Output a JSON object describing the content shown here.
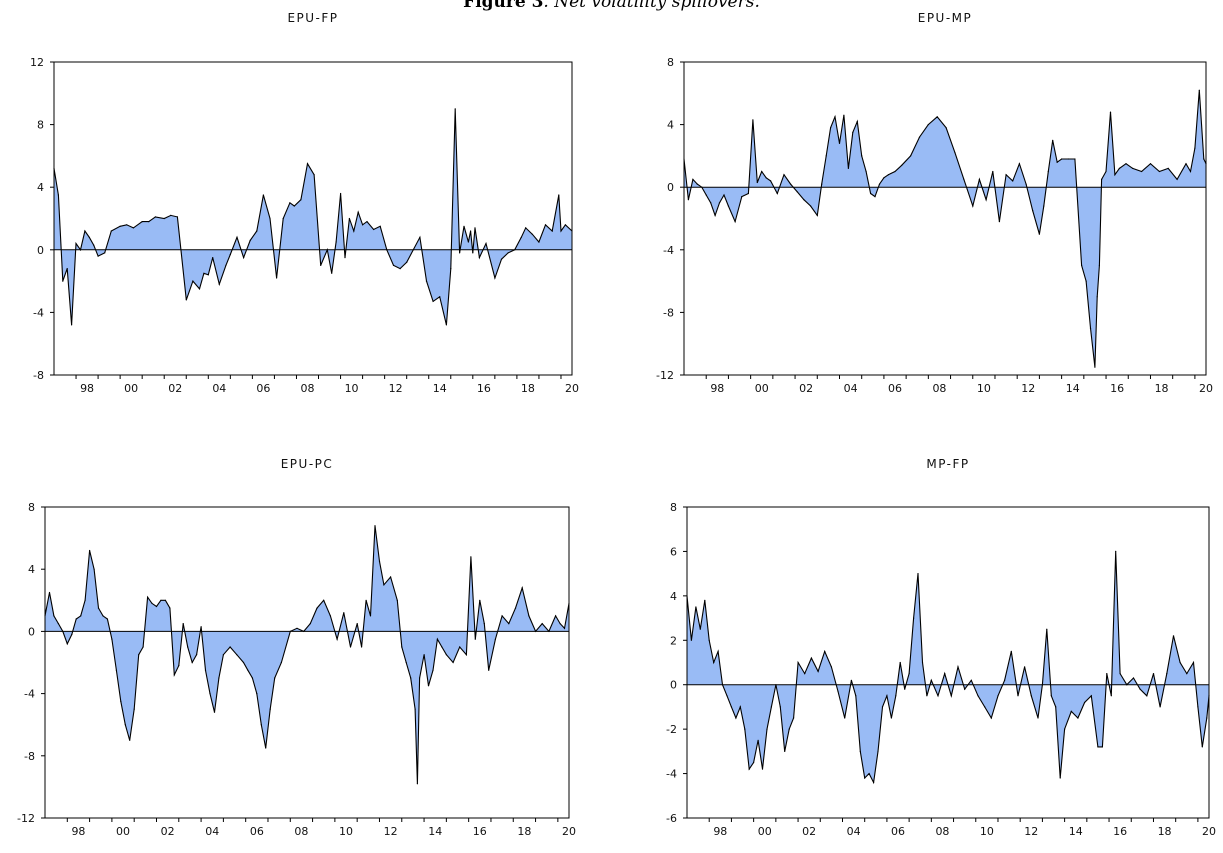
{
  "figure": {
    "label": "Figure 3",
    "caption": ". Net volatility spillovers."
  },
  "colors": {
    "fill": "#99bbf5",
    "line": "#000000",
    "zero": "#000000"
  },
  "chart_data": [
    {
      "type": "area",
      "title": "EPU-FP",
      "ylim": [
        -8,
        12
      ],
      "yticks": [
        -8,
        -4,
        0,
        4,
        8,
        12
      ],
      "xlim": [
        1997,
        2020.5
      ],
      "xticks": [
        "98",
        "00",
        "02",
        "04",
        "06",
        "08",
        "10",
        "12",
        "14",
        "16",
        "18",
        "20"
      ],
      "grid": false,
      "x": [
        1997.0,
        1997.2,
        1997.4,
        1997.6,
        1997.8,
        1998.0,
        1998.2,
        1998.4,
        1998.6,
        1998.8,
        1999.0,
        1999.3,
        1999.6,
        2000.0,
        2000.3,
        2000.6,
        2001.0,
        2001.3,
        2001.6,
        2002.0,
        2002.3,
        2002.6,
        2003.0,
        2003.3,
        2003.6,
        2003.8,
        2004.0,
        2004.2,
        2004.5,
        2004.8,
        2005.0,
        2005.3,
        2005.6,
        2005.9,
        2006.2,
        2006.5,
        2006.8,
        2007.1,
        2007.4,
        2007.7,
        2007.9,
        2008.2,
        2008.5,
        2008.8,
        2009.1,
        2009.4,
        2009.6,
        2009.8,
        2010.0,
        2010.2,
        2010.4,
        2010.6,
        2010.8,
        2011.0,
        2011.2,
        2011.5,
        2011.8,
        2012.1,
        2012.4,
        2012.7,
        2013.0,
        2013.3,
        2013.6,
        2013.9,
        2014.2,
        2014.5,
        2014.8,
        2015.0,
        2015.2,
        2015.4,
        2015.6,
        2015.8,
        2015.9,
        2016.0,
        2016.1,
        2016.3,
        2016.6,
        2017.0,
        2017.3,
        2017.6,
        2017.9,
        2018.2,
        2018.4,
        2018.7,
        2019.0,
        2019.3,
        2019.6,
        2019.9,
        2020.0,
        2020.2,
        2020.5
      ],
      "values": [
        5.2,
        3.5,
        -2.0,
        -1.2,
        -4.8,
        0.4,
        0.0,
        1.2,
        0.8,
        0.3,
        -0.4,
        -0.2,
        1.2,
        1.5,
        1.6,
        1.4,
        1.8,
        1.8,
        2.1,
        2.0,
        2.2,
        2.1,
        -3.2,
        -2.0,
        -2.5,
        -1.5,
        -1.6,
        -0.5,
        -2.2,
        -1.0,
        -0.3,
        0.8,
        -0.5,
        0.6,
        1.2,
        3.5,
        2.0,
        -1.8,
        2.0,
        3.0,
        2.8,
        3.2,
        5.5,
        4.8,
        -1.0,
        0.0,
        -1.5,
        0.5,
        3.6,
        -0.5,
        2.0,
        1.2,
        2.4,
        1.6,
        1.8,
        1.3,
        1.5,
        0.0,
        -1.0,
        -1.2,
        -0.8,
        0.0,
        0.8,
        -2.0,
        -3.3,
        -3.0,
        -4.8,
        -1.2,
        9.0,
        -0.2,
        1.5,
        0.5,
        1.2,
        -0.2,
        1.4,
        -0.5,
        0.4,
        -1.8,
        -0.6,
        -0.2,
        0.0,
        0.8,
        1.4,
        1.0,
        0.5,
        1.6,
        1.2,
        3.5,
        1.2,
        1.6,
        1.2
      ]
    },
    {
      "type": "area",
      "title": "EPU-MP",
      "ylim": [
        -12,
        8
      ],
      "yticks": [
        -12,
        -8,
        -4,
        0,
        4,
        8
      ],
      "xlim": [
        1997,
        2020.5
      ],
      "xticks": [
        "98",
        "00",
        "02",
        "04",
        "06",
        "08",
        "10",
        "12",
        "14",
        "16",
        "18",
        "20"
      ],
      "grid": false,
      "x": [
        1997.0,
        1997.2,
        1997.4,
        1997.6,
        1997.8,
        1998.0,
        1998.2,
        1998.4,
        1998.6,
        1998.8,
        1999.0,
        1999.3,
        1999.6,
        1999.9,
        2000.1,
        2000.3,
        2000.5,
        2000.7,
        2000.9,
        2001.2,
        2001.5,
        2001.8,
        2002.1,
        2002.4,
        2002.7,
        2003.0,
        2003.2,
        2003.4,
        2003.6,
        2003.8,
        2004.0,
        2004.2,
        2004.4,
        2004.6,
        2004.8,
        2005.0,
        2005.2,
        2005.4,
        2005.6,
        2005.8,
        2006.0,
        2006.2,
        2006.5,
        2006.8,
        2007.2,
        2007.6,
        2008.0,
        2008.4,
        2008.8,
        2009.2,
        2009.6,
        2010.0,
        2010.3,
        2010.6,
        2010.9,
        2011.2,
        2011.5,
        2011.8,
        2012.1,
        2012.4,
        2012.7,
        2013.0,
        2013.2,
        2013.4,
        2013.6,
        2013.8,
        2014.0,
        2014.3,
        2014.6,
        2014.9,
        2015.1,
        2015.3,
        2015.5,
        2015.6,
        2015.7,
        2015.8,
        2016.0,
        2016.2,
        2016.4,
        2016.6,
        2016.9,
        2017.2,
        2017.6,
        2018.0,
        2018.4,
        2018.8,
        2019.2,
        2019.6,
        2019.8,
        2020.0,
        2020.2,
        2020.4,
        2020.5
      ],
      "values": [
        1.8,
        -0.8,
        0.5,
        0.2,
        0.0,
        -0.5,
        -1.0,
        -1.8,
        -1.0,
        -0.5,
        -1.2,
        -2.2,
        -0.6,
        -0.4,
        4.3,
        0.3,
        1.0,
        0.6,
        0.4,
        -0.4,
        0.8,
        0.2,
        -0.3,
        -0.8,
        -1.2,
        -1.8,
        0.2,
        2.0,
        3.8,
        4.5,
        2.8,
        4.6,
        1.2,
        3.5,
        4.2,
        2.0,
        1.0,
        -0.4,
        -0.6,
        0.2,
        0.6,
        0.8,
        1.0,
        1.4,
        2.0,
        3.2,
        4.0,
        4.5,
        3.8,
        2.2,
        0.5,
        -1.2,
        0.5,
        -0.8,
        1.0,
        -2.2,
        0.8,
        0.4,
        1.5,
        0.2,
        -1.5,
        -3.0,
        -1.2,
        1.0,
        3.0,
        1.6,
        1.8,
        1.8,
        1.8,
        -5.0,
        -6.0,
        -9.0,
        -11.5,
        -7.0,
        -5.0,
        0.5,
        1.0,
        4.8,
        0.8,
        1.2,
        1.5,
        1.2,
        1.0,
        1.5,
        1.0,
        1.2,
        0.5,
        1.5,
        1.0,
        2.5,
        6.2,
        1.8,
        1.5
      ]
    },
    {
      "type": "area",
      "title": "EPU-PC",
      "ylim": [
        -12,
        8
      ],
      "yticks": [
        -12,
        -8,
        -4,
        0,
        4,
        8
      ],
      "xlim": [
        1997,
        2020.5
      ],
      "xticks": [
        "98",
        "00",
        "02",
        "04",
        "06",
        "08",
        "10",
        "12",
        "14",
        "16",
        "18",
        "20"
      ],
      "grid": false,
      "x": [
        1997.0,
        1997.2,
        1997.4,
        1997.6,
        1997.8,
        1998.0,
        1998.2,
        1998.4,
        1998.6,
        1998.8,
        1999.0,
        1999.2,
        1999.4,
        1999.6,
        1999.8,
        2000.0,
        2000.2,
        2000.4,
        2000.6,
        2000.8,
        2001.0,
        2001.2,
        2001.4,
        2001.6,
        2001.8,
        2002.0,
        2002.2,
        2002.4,
        2002.6,
        2002.8,
        2003.0,
        2003.2,
        2003.4,
        2003.6,
        2003.8,
        2004.0,
        2004.2,
        2004.4,
        2004.6,
        2004.8,
        2005.0,
        2005.3,
        2005.6,
        2005.9,
        2006.1,
        2006.3,
        2006.5,
        2006.7,
        2006.9,
        2007.1,
        2007.3,
        2007.6,
        2008.0,
        2008.3,
        2008.6,
        2008.9,
        2009.2,
        2009.5,
        2009.8,
        2010.1,
        2010.4,
        2010.7,
        2011.0,
        2011.2,
        2011.4,
        2011.6,
        2011.8,
        2012.0,
        2012.2,
        2012.5,
        2012.8,
        2013.0,
        2013.2,
        2013.4,
        2013.6,
        2013.7,
        2013.8,
        2014.0,
        2014.2,
        2014.4,
        2014.6,
        2014.8,
        2015.0,
        2015.3,
        2015.6,
        2015.9,
        2016.1,
        2016.3,
        2016.5,
        2016.7,
        2016.9,
        2017.2,
        2017.5,
        2017.8,
        2018.1,
        2018.4,
        2018.7,
        2019.0,
        2019.3,
        2019.6,
        2019.9,
        2020.1,
        2020.3,
        2020.5
      ],
      "values": [
        1.0,
        2.5,
        1.0,
        0.5,
        0.0,
        -0.8,
        -0.2,
        0.8,
        1.0,
        2.0,
        5.2,
        4.0,
        1.5,
        1.0,
        0.8,
        -0.5,
        -2.5,
        -4.5,
        -6.0,
        -7.0,
        -5.0,
        -1.5,
        -1.0,
        2.2,
        1.8,
        1.6,
        2.0,
        2.0,
        1.5,
        -2.8,
        -2.2,
        0.5,
        -1.0,
        -2.0,
        -1.5,
        0.3,
        -2.5,
        -4.0,
        -5.2,
        -3.0,
        -1.5,
        -1.0,
        -1.5,
        -2.0,
        -2.5,
        -3.0,
        -4.0,
        -6.0,
        -7.5,
        -5.0,
        -3.0,
        -2.0,
        0.0,
        0.2,
        0.0,
        0.5,
        1.5,
        2.0,
        1.0,
        -0.5,
        1.2,
        -1.0,
        0.5,
        -1.0,
        2.0,
        1.0,
        6.8,
        4.5,
        3.0,
        3.5,
        2.0,
        -1.0,
        -2.0,
        -3.0,
        -5.0,
        -9.8,
        -3.0,
        -1.5,
        -3.5,
        -2.5,
        -0.5,
        -1.0,
        -1.5,
        -2.0,
        -1.0,
        -1.5,
        4.8,
        -0.5,
        2.0,
        0.5,
        -2.5,
        -0.5,
        1.0,
        0.5,
        1.5,
        2.8,
        1.0,
        0.0,
        0.5,
        0.0,
        1.0,
        0.5,
        0.2,
        1.8
      ]
    },
    {
      "type": "area",
      "title": "MP-FP",
      "ylim": [
        -6,
        8
      ],
      "yticks": [
        -6,
        -4,
        -2,
        0,
        2,
        4,
        6,
        8
      ],
      "xlim": [
        1997,
        2020.5
      ],
      "xticks": [
        "98",
        "00",
        "02",
        "04",
        "06",
        "08",
        "10",
        "12",
        "14",
        "16",
        "18",
        "20"
      ],
      "grid": false,
      "x": [
        1997.0,
        1997.2,
        1997.4,
        1997.6,
        1997.8,
        1998.0,
        1998.2,
        1998.4,
        1998.6,
        1998.8,
        1999.0,
        1999.2,
        1999.4,
        1999.6,
        1999.8,
        2000.0,
        2000.2,
        2000.4,
        2000.6,
        2000.8,
        2001.0,
        2001.2,
        2001.4,
        2001.6,
        2001.8,
        2002.0,
        2002.3,
        2002.6,
        2002.9,
        2003.2,
        2003.5,
        2003.8,
        2004.1,
        2004.4,
        2004.6,
        2004.8,
        2005.0,
        2005.2,
        2005.4,
        2005.6,
        2005.8,
        2006.0,
        2006.2,
        2006.4,
        2006.6,
        2006.8,
        2007.0,
        2007.2,
        2007.4,
        2007.6,
        2007.8,
        2008.0,
        2008.3,
        2008.6,
        2008.9,
        2009.2,
        2009.5,
        2009.8,
        2010.1,
        2010.4,
        2010.7,
        2011.0,
        2011.3,
        2011.6,
        2011.9,
        2012.2,
        2012.5,
        2012.8,
        2013.0,
        2013.2,
        2013.4,
        2013.6,
        2013.8,
        2014.0,
        2014.3,
        2014.6,
        2014.9,
        2015.2,
        2015.5,
        2015.7,
        2015.9,
        2016.1,
        2016.3,
        2016.5,
        2016.8,
        2017.1,
        2017.4,
        2017.7,
        2018.0,
        2018.3,
        2018.6,
        2018.9,
        2019.2,
        2019.5,
        2019.8,
        2020.0,
        2020.2,
        2020.4,
        2020.5
      ],
      "values": [
        4.0,
        2.0,
        3.5,
        2.5,
        3.8,
        2.0,
        1.0,
        1.5,
        0.0,
        -0.5,
        -1.0,
        -1.5,
        -1.0,
        -2.0,
        -3.8,
        -3.5,
        -2.5,
        -3.8,
        -2.0,
        -1.0,
        0.0,
        -1.0,
        -3.0,
        -2.0,
        -1.5,
        1.0,
        0.5,
        1.2,
        0.6,
        1.5,
        0.8,
        -0.3,
        -1.5,
        0.2,
        -0.5,
        -3.0,
        -4.2,
        -4.0,
        -4.4,
        -3.0,
        -1.0,
        -0.5,
        -1.5,
        -0.5,
        1.0,
        -0.2,
        0.5,
        3.0,
        5.0,
        1.0,
        -0.5,
        0.2,
        -0.5,
        0.5,
        -0.5,
        0.8,
        -0.2,
        0.2,
        -0.5,
        -1.0,
        -1.5,
        -0.5,
        0.2,
        1.5,
        -0.5,
        0.8,
        -0.5,
        -1.5,
        0.0,
        2.5,
        -0.5,
        -1.0,
        -4.2,
        -2.0,
        -1.2,
        -1.5,
        -0.8,
        -0.5,
        -2.8,
        -2.8,
        0.5,
        -0.5,
        6.0,
        0.5,
        0.0,
        0.3,
        -0.2,
        -0.5,
        0.5,
        -1.0,
        0.5,
        2.2,
        1.0,
        0.5,
        1.0,
        -1.0,
        -2.8,
        -1.5,
        -0.5
      ]
    }
  ]
}
